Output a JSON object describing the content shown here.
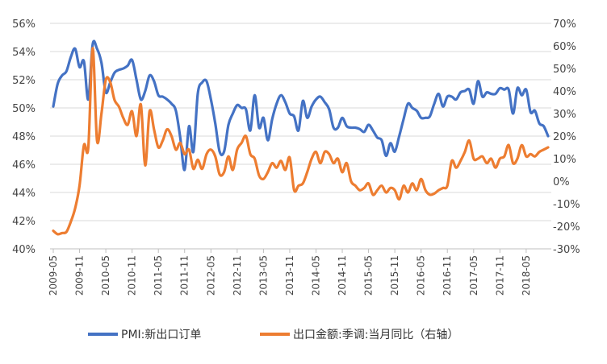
{
  "chart_data": {
    "type": "line",
    "title": "",
    "grid": true,
    "legend_position": "bottom",
    "x": [
      "2009-05",
      "2009-06",
      "2009-07",
      "2009-08",
      "2009-09",
      "2009-10",
      "2009-11",
      "2009-12",
      "2010-01",
      "2010-02",
      "2010-03",
      "2010-04",
      "2010-05",
      "2010-06",
      "2010-07",
      "2010-08",
      "2010-09",
      "2010-10",
      "2010-11",
      "2010-12",
      "2011-01",
      "2011-02",
      "2011-03",
      "2011-04",
      "2011-05",
      "2011-06",
      "2011-07",
      "2011-08",
      "2011-09",
      "2011-10",
      "2011-11",
      "2011-12",
      "2012-01",
      "2012-02",
      "2012-03",
      "2012-04",
      "2012-05",
      "2012-06",
      "2012-07",
      "2012-08",
      "2012-09",
      "2012-10",
      "2012-11",
      "2012-12",
      "2013-01",
      "2013-02",
      "2013-03",
      "2013-04",
      "2013-05",
      "2013-06",
      "2013-07",
      "2013-08",
      "2013-09",
      "2013-10",
      "2013-11",
      "2013-12",
      "2014-01",
      "2014-02",
      "2014-03",
      "2014-04",
      "2014-05",
      "2014-06",
      "2014-07",
      "2014-08",
      "2014-09",
      "2014-10",
      "2014-11",
      "2014-12",
      "2015-01",
      "2015-02",
      "2015-03",
      "2015-04",
      "2015-05",
      "2015-06",
      "2015-07",
      "2015-08",
      "2015-09",
      "2015-10",
      "2015-11",
      "2015-12",
      "2016-01",
      "2016-02",
      "2016-03",
      "2016-04",
      "2016-05",
      "2016-06",
      "2016-07",
      "2016-08",
      "2016-09",
      "2016-10",
      "2016-11",
      "2016-12",
      "2017-01",
      "2017-02",
      "2017-03",
      "2017-04",
      "2017-05",
      "2017-06",
      "2017-07",
      "2017-08",
      "2017-09",
      "2017-10",
      "2017-11",
      "2017-12",
      "2018-01",
      "2018-02",
      "2018-03",
      "2018-04",
      "2018-05",
      "2018-06",
      "2018-07",
      "2018-08",
      "2018-09",
      "2018-10"
    ],
    "xtick_labels": [
      "2009-05",
      "2009-11",
      "2010-05",
      "2010-11",
      "2011-05",
      "2011-11",
      "2012-05",
      "2012-11",
      "2013-05",
      "2013-11",
      "2014-05",
      "2014-11",
      "2015-05",
      "2015-11",
      "2016-05",
      "2016-11",
      "2017-05",
      "2017-11",
      "2018-05"
    ],
    "y_left": {
      "ylim": [
        40,
        56
      ],
      "ticks": [
        "40%",
        "42%",
        "44%",
        "46%",
        "48%",
        "50%",
        "52%",
        "54%",
        "56%"
      ],
      "ylabel": ""
    },
    "y_right": {
      "ylim": [
        -30,
        70
      ],
      "ticks": [
        "-30%",
        "-20%",
        "-10%",
        "0%",
        "10%",
        "20%",
        "30%",
        "40%",
        "50%",
        "60%",
        "70%"
      ],
      "ylabel": ""
    },
    "series": [
      {
        "name": "PMI:新出口订单",
        "axis": "left",
        "color": "#4472C4",
        "values": [
          50.1,
          51.7,
          52.3,
          52.6,
          53.6,
          54.2,
          52.9,
          53.3,
          50.6,
          54.5,
          54.2,
          53.2,
          51.1,
          51.8,
          52.5,
          52.7,
          52.8,
          53.0,
          53.4,
          52.0,
          50.6,
          51.2,
          52.3,
          51.9,
          50.9,
          50.8,
          50.6,
          50.3,
          49.8,
          47.9,
          45.6,
          48.7,
          46.9,
          51.0,
          51.8,
          51.9,
          50.6,
          48.9,
          46.9,
          46.9,
          48.8,
          49.6,
          50.2,
          50.0,
          49.9,
          48.4,
          50.9,
          48.6,
          49.3,
          47.7,
          49.2,
          50.3,
          50.9,
          50.4,
          49.6,
          49.4,
          48.4,
          50.5,
          49.3,
          50.1,
          50.6,
          50.8,
          50.4,
          49.9,
          48.6,
          48.6,
          49.3,
          48.7,
          48.6,
          48.6,
          48.5,
          48.3,
          48.8,
          48.4,
          47.9,
          47.7,
          46.6,
          47.5,
          46.9,
          48.0,
          49.2,
          50.3,
          50.0,
          49.8,
          49.3,
          49.3,
          49.4,
          50.3,
          51.0,
          50.1,
          50.8,
          50.8,
          50.6,
          51.1,
          51.2,
          51.3,
          50.3,
          51.9,
          50.8,
          51.1,
          51.0,
          51.0,
          51.4,
          51.3,
          51.3,
          49.6,
          51.4,
          50.9,
          51.3,
          49.7,
          49.8,
          48.9,
          48.7,
          48.0
        ]
      },
      {
        "name": "出口金额:季调:当月同比（右轴）",
        "axis": "right",
        "color": "#ED7D31",
        "values": [
          -22.0,
          -23.5,
          -23.0,
          -22.5,
          -18.0,
          -12.0,
          -2.0,
          16.0,
          15.0,
          59.0,
          18.0,
          30.0,
          45.0,
          44.0,
          36.0,
          33.0,
          28.0,
          25.0,
          31.0,
          20.0,
          34.0,
          7.0,
          31.0,
          23.0,
          15.0,
          18.0,
          23.0,
          20.0,
          14.0,
          17.0,
          12.0,
          14.0,
          5.5,
          9.5,
          5.5,
          12.0,
          14.0,
          11.0,
          3.0,
          4.0,
          11.0,
          5.0,
          14.0,
          17.0,
          20.0,
          12.0,
          10.0,
          2.5,
          1.0,
          4.0,
          8.0,
          6.0,
          9.0,
          5.0,
          10.5,
          -4.0,
          -2.0,
          -1.0,
          4.0,
          10.0,
          13.0,
          8.0,
          13.0,
          12.0,
          8.0,
          10.0,
          4.0,
          8.0,
          0.0,
          -2.0,
          -4.0,
          -3.0,
          -1.0,
          -6.0,
          -4.0,
          -2.0,
          -5.0,
          -3.0,
          -4.0,
          -8.0,
          -2.0,
          -5.0,
          -1.0,
          -4.0,
          1.0,
          -4.0,
          -6.0,
          -5.5,
          -4.0,
          -3.0,
          -2.0,
          9.0,
          6.0,
          9.0,
          13.0,
          18.0,
          10.0,
          10.0,
          11.0,
          8.0,
          10.0,
          6.0,
          10.0,
          11.0,
          16.0,
          8.0,
          10.0,
          16.0,
          11.0,
          12.0,
          11.0,
          13.0,
          14.0,
          15.0
        ]
      }
    ]
  }
}
